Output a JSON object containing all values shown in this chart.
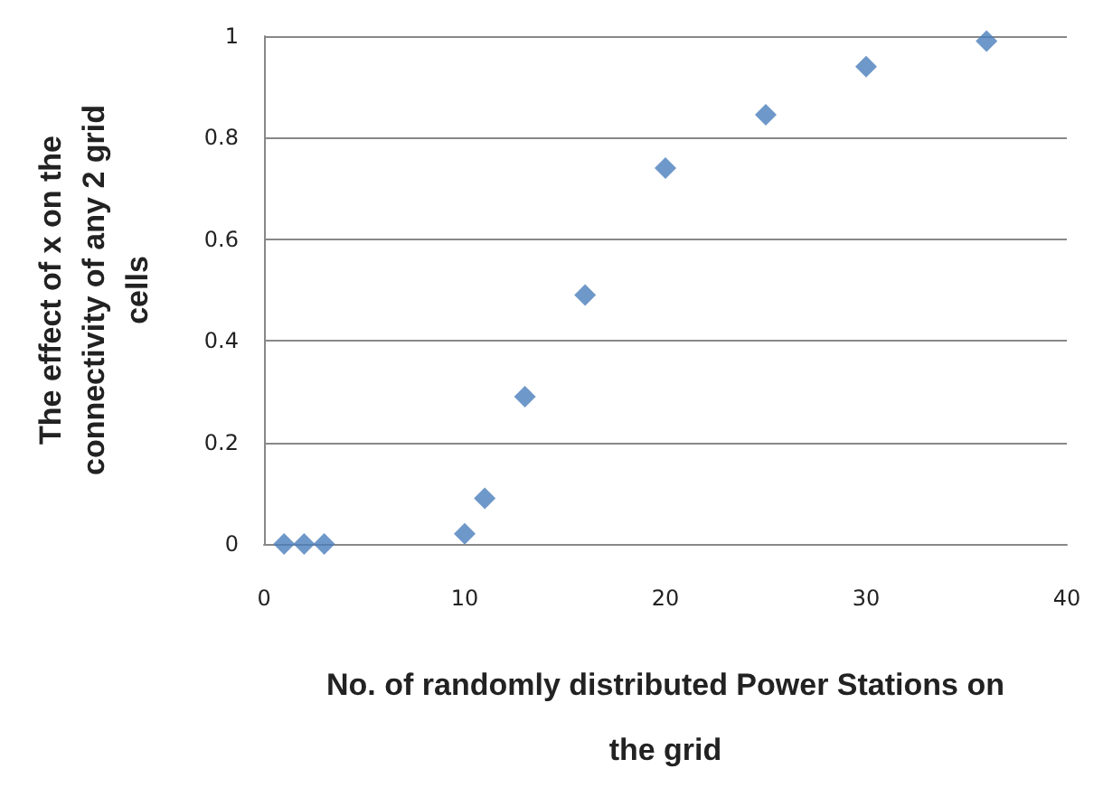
{
  "chart_data": {
    "type": "scatter",
    "xlabel": "No. of randomly distributed Power Stations on the grid",
    "ylabel": "The effect of x on the connectivity of any 2 grid cells",
    "x": [
      1,
      2,
      3,
      10,
      11,
      13,
      16,
      20,
      25,
      30,
      36
    ],
    "series": [
      {
        "color": "#4a7ebb",
        "values": [
          0,
          0,
          0,
          0.02,
          0.09,
          0.29,
          0.49,
          0.74,
          0.845,
          0.94,
          0.99
        ]
      }
    ],
    "xlim": [
      0,
      40
    ],
    "xticks": [
      0,
      10,
      20,
      30,
      40
    ],
    "ylim": [
      0,
      1
    ],
    "yticks": [
      0,
      0.2,
      0.4,
      0.6,
      0.8,
      1
    ],
    "grid": "y",
    "marker": "diamond"
  }
}
